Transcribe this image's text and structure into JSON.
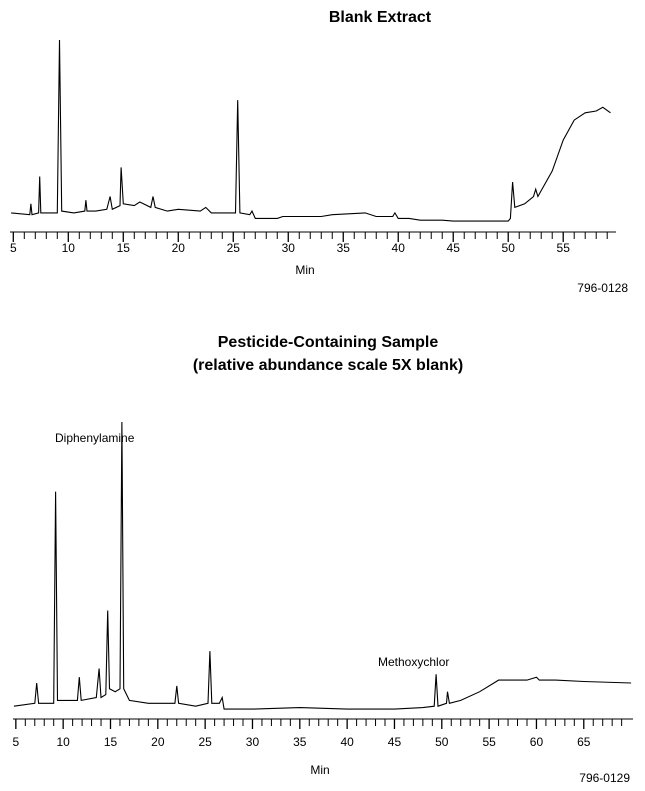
{
  "chart_data": [
    {
      "type": "line",
      "title": "Blank Extract",
      "x_label": "Min",
      "annotations": [
        "796-0128"
      ],
      "xlim": [
        4.7,
        59.8
      ],
      "xticks": [
        5,
        10,
        15,
        20,
        25,
        30,
        35,
        40,
        45,
        50,
        55
      ],
      "ylim": [
        0,
        100
      ],
      "series": [
        {
          "color": "#000000",
          "x": [
            4.8,
            6.5,
            6.6,
            6.7,
            7.3,
            7.4,
            7.5,
            9.0,
            9.2,
            9.4,
            10.5,
            11.5,
            11.6,
            11.7,
            12.5,
            13.5,
            13.8,
            14.0,
            14.7,
            14.8,
            15.0,
            16.0,
            16.5,
            17.5,
            17.7,
            17.9,
            19.0,
            20.0,
            22.0,
            22.5,
            23.0,
            24.0,
            25.2,
            25.4,
            25.6,
            26.5,
            26.7,
            27.0,
            29.0,
            29.5,
            33.0,
            34.0,
            37.0,
            38.0,
            39.5,
            39.7,
            40.0,
            41.0,
            42.0,
            44.0,
            45.0,
            50.0,
            50.2,
            50.4,
            50.6,
            51.5,
            52.3,
            52.5,
            52.7,
            54.0,
            55.0,
            56.0,
            57.0,
            58.0,
            58.6,
            59.3
          ],
          "values": [
            5,
            4,
            10,
            4,
            5,
            25,
            5,
            5,
            100,
            6,
            5,
            6,
            12,
            6,
            6,
            7,
            14,
            7,
            9,
            30,
            10,
            9,
            11,
            8,
            14,
            8,
            6,
            7,
            6,
            8,
            5,
            5,
            5,
            67,
            5,
            4,
            6,
            2,
            2,
            3,
            3,
            4,
            5,
            3,
            3,
            5,
            2,
            2,
            1,
            1,
            0.5,
            0.5,
            2,
            22,
            8,
            10,
            14,
            18,
            14,
            28,
            45,
            56,
            60,
            61,
            63,
            60
          ]
        }
      ]
    },
    {
      "type": "line",
      "title": "Pesticide-Containing Sample",
      "subtitle": "(relative abundance scale 5X blank)",
      "x_label": "Min",
      "annotations": [
        "Diphenylamine",
        "Methoxychlor",
        "796-0129"
      ],
      "xlim": [
        4.7,
        70.2
      ],
      "xticks": [
        5,
        10,
        15,
        20,
        25,
        30,
        35,
        40,
        45,
        50,
        55,
        60,
        65
      ],
      "ylim": [
        0,
        100
      ],
      "series": [
        {
          "color": "#000000",
          "x": [
            4.8,
            7.0,
            7.2,
            7.4,
            9.0,
            9.2,
            9.4,
            11.0,
            11.5,
            11.7,
            11.9,
            13.5,
            13.8,
            14.0,
            14.5,
            14.7,
            14.9,
            15.5,
            16.0,
            16.2,
            16.4,
            17.0,
            19.0,
            20.0,
            21.8,
            22.0,
            22.2,
            24.0,
            25.3,
            25.5,
            25.7,
            26.5,
            26.8,
            27.0,
            30.0,
            35.0,
            40.0,
            45.0,
            48.0,
            49.2,
            49.4,
            49.6,
            50.5,
            50.6,
            50.8,
            52.0,
            54.0,
            56.0,
            57.0,
            59.0,
            60.0,
            60.3,
            62.0,
            65.0,
            70.0
          ],
          "values": [
            2,
            3,
            10,
            3,
            3,
            76,
            4,
            4,
            4,
            12,
            4,
            5,
            15,
            5,
            6,
            35,
            8,
            7,
            8,
            100,
            8,
            4,
            3,
            3,
            3,
            9,
            3,
            2,
            3,
            21,
            3,
            3,
            5,
            1,
            1,
            1.5,
            1,
            1,
            1.5,
            2,
            13,
            2,
            3,
            7,
            3,
            4,
            7,
            11,
            11,
            11,
            12,
            11,
            11,
            10.5,
            10
          ]
        }
      ]
    }
  ]
}
